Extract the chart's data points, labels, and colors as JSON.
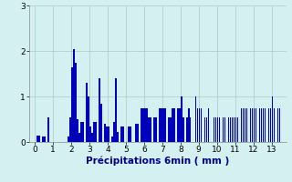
{
  "xlabel": "Précipitations 6min ( mm )",
  "background_color": "#d4f0f0",
  "bar_color": "#0000bb",
  "grid_color": "#aacccc",
  "xlim": [
    -0.3,
    13.8
  ],
  "ylim": [
    0,
    3.0
  ],
  "yticks": [
    0,
    1,
    2,
    3
  ],
  "xticks": [
    0,
    1,
    2,
    3,
    4,
    5,
    6,
    7,
    8,
    9,
    10,
    11,
    12,
    13
  ],
  "precip_data": [
    [
      0.15,
      0.15
    ],
    [
      0.25,
      0.15
    ],
    [
      0.45,
      0.13
    ],
    [
      0.55,
      0.13
    ],
    [
      0.75,
      0.55
    ],
    [
      1.85,
      0.13
    ],
    [
      1.95,
      0.55
    ],
    [
      2.05,
      1.65
    ],
    [
      2.15,
      2.05
    ],
    [
      2.25,
      1.75
    ],
    [
      2.35,
      0.5
    ],
    [
      2.45,
      0.2
    ],
    [
      2.55,
      0.45
    ],
    [
      2.65,
      0.45
    ],
    [
      2.85,
      1.3
    ],
    [
      2.95,
      1.0
    ],
    [
      3.05,
      0.35
    ],
    [
      3.15,
      0.2
    ],
    [
      3.25,
      0.45
    ],
    [
      3.35,
      0.45
    ],
    [
      3.55,
      1.4
    ],
    [
      3.65,
      0.85
    ],
    [
      3.85,
      0.4
    ],
    [
      3.95,
      0.35
    ],
    [
      4.05,
      0.35
    ],
    [
      4.25,
      0.13
    ],
    [
      4.35,
      0.45
    ],
    [
      4.45,
      1.4
    ],
    [
      4.55,
      0.22
    ],
    [
      4.75,
      0.35
    ],
    [
      4.85,
      0.35
    ],
    [
      5.15,
      0.35
    ],
    [
      5.25,
      0.35
    ],
    [
      5.55,
      0.4
    ],
    [
      5.65,
      0.4
    ],
    [
      5.85,
      0.75
    ],
    [
      5.95,
      0.75
    ],
    [
      6.05,
      0.75
    ],
    [
      6.15,
      0.75
    ],
    [
      6.25,
      0.55
    ],
    [
      6.35,
      0.55
    ],
    [
      6.55,
      0.55
    ],
    [
      6.65,
      0.55
    ],
    [
      6.85,
      0.75
    ],
    [
      6.95,
      0.75
    ],
    [
      7.05,
      0.75
    ],
    [
      7.15,
      0.75
    ],
    [
      7.35,
      0.55
    ],
    [
      7.45,
      0.55
    ],
    [
      7.55,
      0.75
    ],
    [
      7.65,
      0.75
    ],
    [
      7.85,
      0.75
    ],
    [
      7.95,
      0.75
    ],
    [
      8.05,
      1.0
    ],
    [
      8.15,
      0.55
    ],
    [
      8.35,
      0.55
    ],
    [
      8.45,
      0.75
    ],
    [
      8.55,
      0.55
    ],
    [
      8.85,
      1.0
    ],
    [
      8.95,
      0.75
    ],
    [
      9.05,
      0.75
    ],
    [
      9.15,
      0.75
    ],
    [
      9.35,
      0.55
    ],
    [
      9.45,
      0.55
    ],
    [
      9.55,
      0.75
    ],
    [
      9.85,
      0.55
    ],
    [
      9.95,
      0.55
    ],
    [
      10.05,
      0.55
    ],
    [
      10.15,
      0.55
    ],
    [
      10.35,
      0.55
    ],
    [
      10.45,
      0.55
    ],
    [
      10.65,
      0.55
    ],
    [
      10.75,
      0.55
    ],
    [
      10.85,
      0.55
    ],
    [
      10.95,
      0.55
    ],
    [
      11.05,
      0.55
    ],
    [
      11.15,
      0.55
    ],
    [
      11.35,
      0.75
    ],
    [
      11.45,
      0.75
    ],
    [
      11.55,
      0.75
    ],
    [
      11.65,
      0.75
    ],
    [
      11.85,
      0.75
    ],
    [
      11.95,
      0.75
    ],
    [
      12.05,
      0.75
    ],
    [
      12.15,
      0.75
    ],
    [
      12.35,
      0.75
    ],
    [
      12.45,
      0.75
    ],
    [
      12.55,
      0.75
    ],
    [
      12.65,
      0.75
    ],
    [
      12.85,
      0.75
    ],
    [
      12.95,
      0.75
    ],
    [
      13.05,
      1.0
    ],
    [
      13.15,
      0.75
    ],
    [
      13.35,
      0.75
    ],
    [
      13.45,
      0.75
    ]
  ]
}
